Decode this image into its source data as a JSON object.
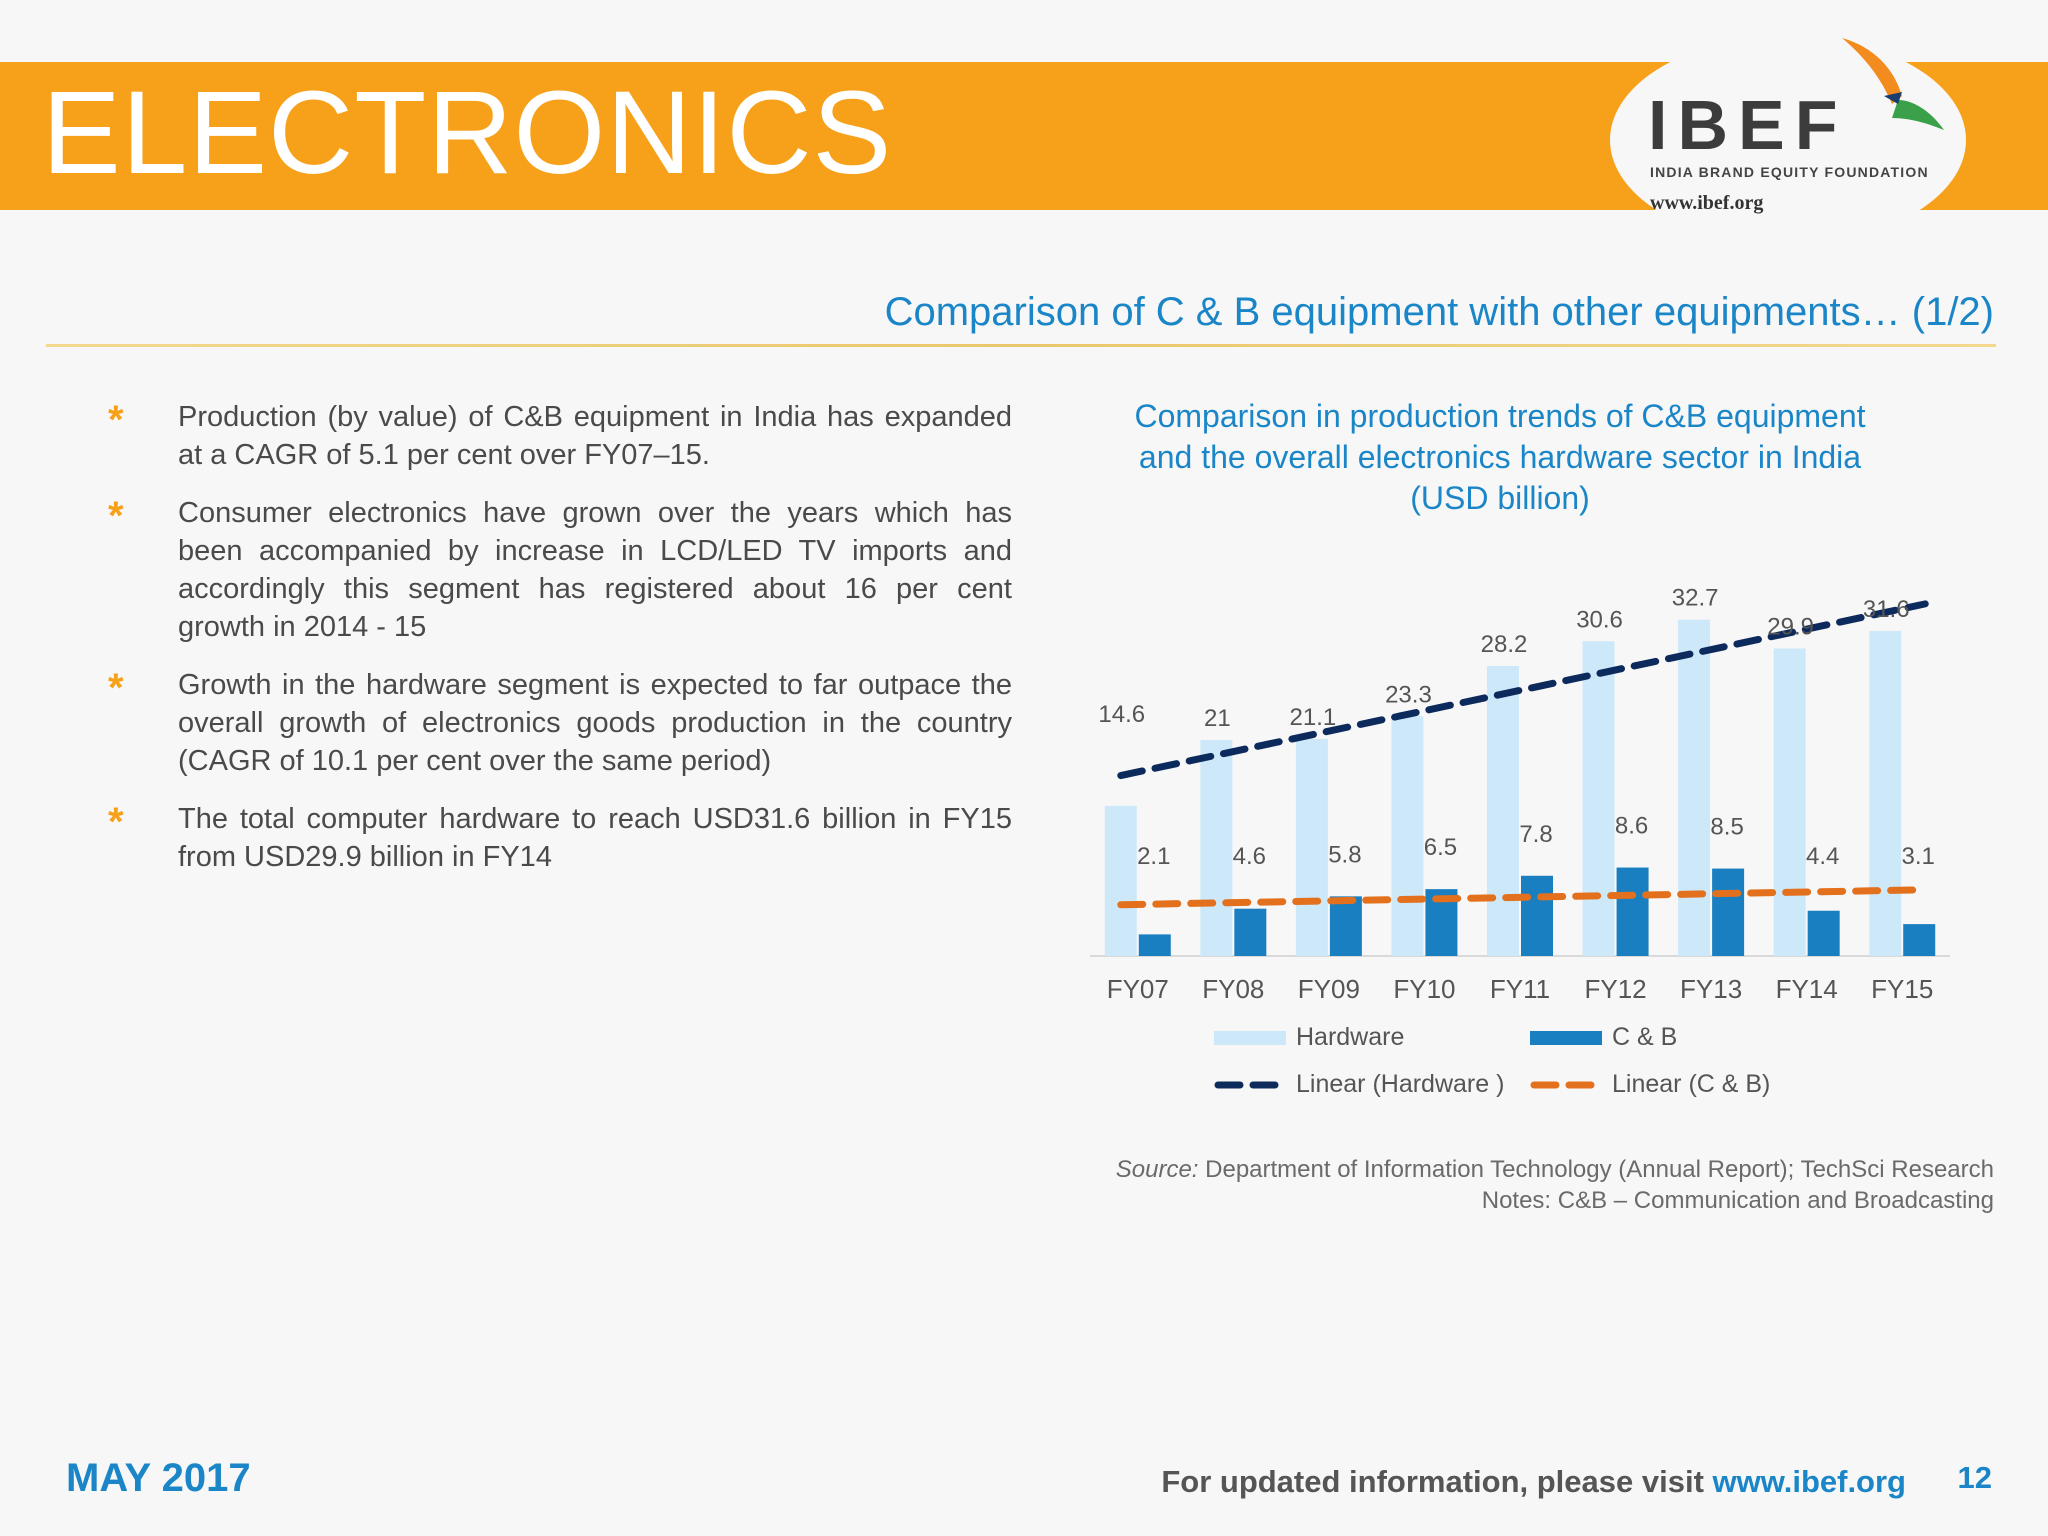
{
  "header": {
    "title": "ELECTRONICS",
    "logo": {
      "name": "IBEF",
      "subtitle": "INDIA BRAND EQUITY FOUNDATION",
      "url": "www.ibef.org"
    }
  },
  "section_title": "Comparison of C & B equipment with other equipments… (1/2)",
  "bullets": [
    "Production (by value) of C&B equipment in India has expanded at a CAGR of 5.1 per cent over FY07–15.",
    "Consumer electronics have grown over the years which has been accompanied by increase in LCD/LED TV imports and accordingly this segment has registered about 16 per cent growth in 2014 - 15",
    "Growth in the hardware segment is expected to far outpace the overall growth of electronics goods production in the country (CAGR of 10.1 per cent over the same period)",
    "The total computer hardware to reach USD31.6 billion in FY15 from USD29.9 billion in FY14"
  ],
  "bullet_marker": "*",
  "chart_data": {
    "type": "bar",
    "title": "Comparison in production trends of C&B equipment and the overall electronics hardware sector in India (USD billion)",
    "categories": [
      "FY07",
      "FY08",
      "FY09",
      "FY10",
      "FY11",
      "FY12",
      "FY13",
      "FY14",
      "FY15"
    ],
    "series": [
      {
        "name": "Hardware",
        "values": [
          14.6,
          21,
          21.1,
          23.3,
          28.2,
          30.6,
          32.7,
          29.9,
          31.6
        ],
        "color": "#cde9f9"
      },
      {
        "name": "C & B",
        "values": [
          2.1,
          4.6,
          5.8,
          6.5,
          7.8,
          8.6,
          8.5,
          4.4,
          3.1
        ],
        "color": "#1a7fc1"
      }
    ],
    "trendlines": [
      {
        "name": "Linear (Hardware )",
        "of": "Hardware",
        "color": "#0d2a5c",
        "style": "dashed"
      },
      {
        "name": "Linear (C & B)",
        "of": "C & B",
        "color": "#e3701c",
        "style": "dashed"
      }
    ],
    "ylim": [
      0,
      35
    ],
    "grid": false,
    "legend": "bottom"
  },
  "source": {
    "label": "Source:",
    "text": " Department of Information Technology (Annual Report); TechSci Research",
    "notes": "Notes: C&B – Communication and Broadcasting"
  },
  "footer": {
    "date": "MAY 2017",
    "note": "For updated information, please visit ",
    "link": "www.ibef.org",
    "page": "12"
  }
}
